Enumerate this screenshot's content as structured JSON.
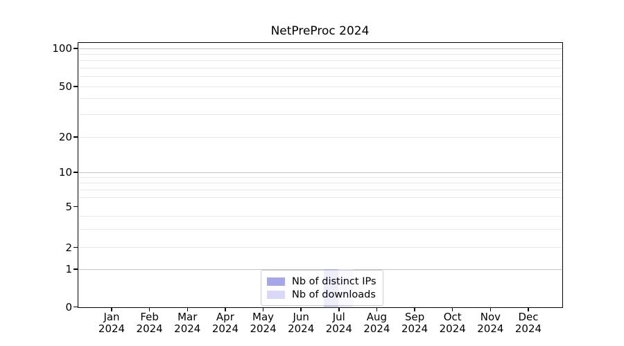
{
  "figure": {
    "title": "NetPreProc 2024",
    "background": "#ffffff"
  },
  "chart_data": {
    "type": "bar",
    "title": "NetPreProc 2024",
    "categories": [
      "Jan 2024",
      "Feb 2024",
      "Mar 2024",
      "Apr 2024",
      "May 2024",
      "Jun 2024",
      "Jul 2024",
      "Aug 2024",
      "Sep 2024",
      "Oct 2024",
      "Nov 2024",
      "Dec 2024"
    ],
    "series": [
      {
        "name": "Nb of distinct IPs",
        "color": "#a6a6ea",
        "values": [
          0,
          0,
          0,
          0,
          0,
          0,
          1,
          0,
          0,
          0,
          0,
          0
        ]
      },
      {
        "name": "Nb of downloads",
        "color": "#d9d9f7",
        "values": [
          0,
          0,
          0,
          0,
          0,
          0,
          1,
          0,
          0,
          0,
          0,
          0
        ]
      }
    ],
    "xlabel": "",
    "ylabel": "",
    "yscale": "symlog",
    "ylim": [
      0,
      112
    ],
    "yticks_labeled": [
      0,
      1,
      2,
      5,
      10,
      20,
      50,
      100
    ],
    "gridlines_major": [
      1,
      10,
      100
    ],
    "gridlines_minor": [
      2,
      3,
      4,
      6,
      7,
      8,
      9,
      20,
      30,
      40,
      50,
      60,
      70,
      80,
      90
    ],
    "grid": "horizontal major and minor, light gray",
    "legend_position": "lower center",
    "bar_group": "two bars side by side per month, only Jul 2024 non-zero"
  }
}
